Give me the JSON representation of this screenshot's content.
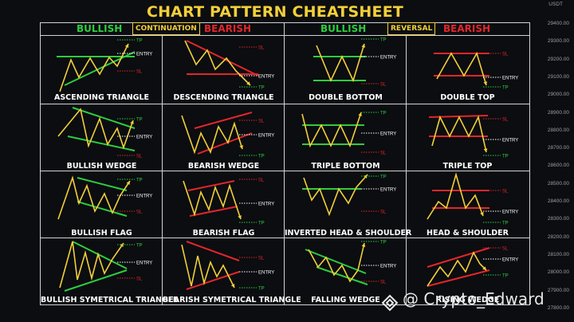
{
  "title": "CHART PATTERN CHEATSHEET",
  "headers": {
    "col1": "BULLISH",
    "col2": "BEARISH",
    "col3": "BULLISH",
    "col4": "BEARISH",
    "continuation": "CONTINUATION",
    "reversal": "REVERSAL"
  },
  "labels": {
    "tp": "TP",
    "entry": "ENTRY",
    "sl": "SL"
  },
  "patterns": [
    "ASCENDING TRIANGLE",
    "DESCENDING TRIANGLE",
    "DOUBLE BOTTOM",
    "DOUBLE TOP",
    "BULLISH WEDGE",
    "BEARISH WEDGE",
    "TRIPLE BOTTOM",
    "TRIPLE TOP",
    "BULLISH FLAG",
    "BEARISH FLAG",
    "INVERTED HEAD & SHOULDER",
    "HEAD & SHOULDER",
    "BULLISH SYMETRICAL TRIANGLE",
    "BEARISH SYMETRICAL TRIANGLE",
    "FALLING WEDGE",
    "RISING WEDGE"
  ],
  "axis": {
    "header": "USDT",
    "ticks": [
      "29400.00",
      "29300.00",
      "29200.00",
      "29100.00",
      "29000.00",
      "28900.00",
      "28800.00",
      "28700.00",
      "28600.00",
      "28500.00",
      "28400.00",
      "28300.00",
      "28200.00",
      "28100.00",
      "28000.00",
      "27900.00",
      "27800.00"
    ]
  },
  "watermark": "@ Crypto_Edward",
  "colors": {
    "yellow": "#f2cf3a",
    "green": "#2ecc40",
    "red": "#e2262b",
    "grid": "#cfd3d8"
  }
}
